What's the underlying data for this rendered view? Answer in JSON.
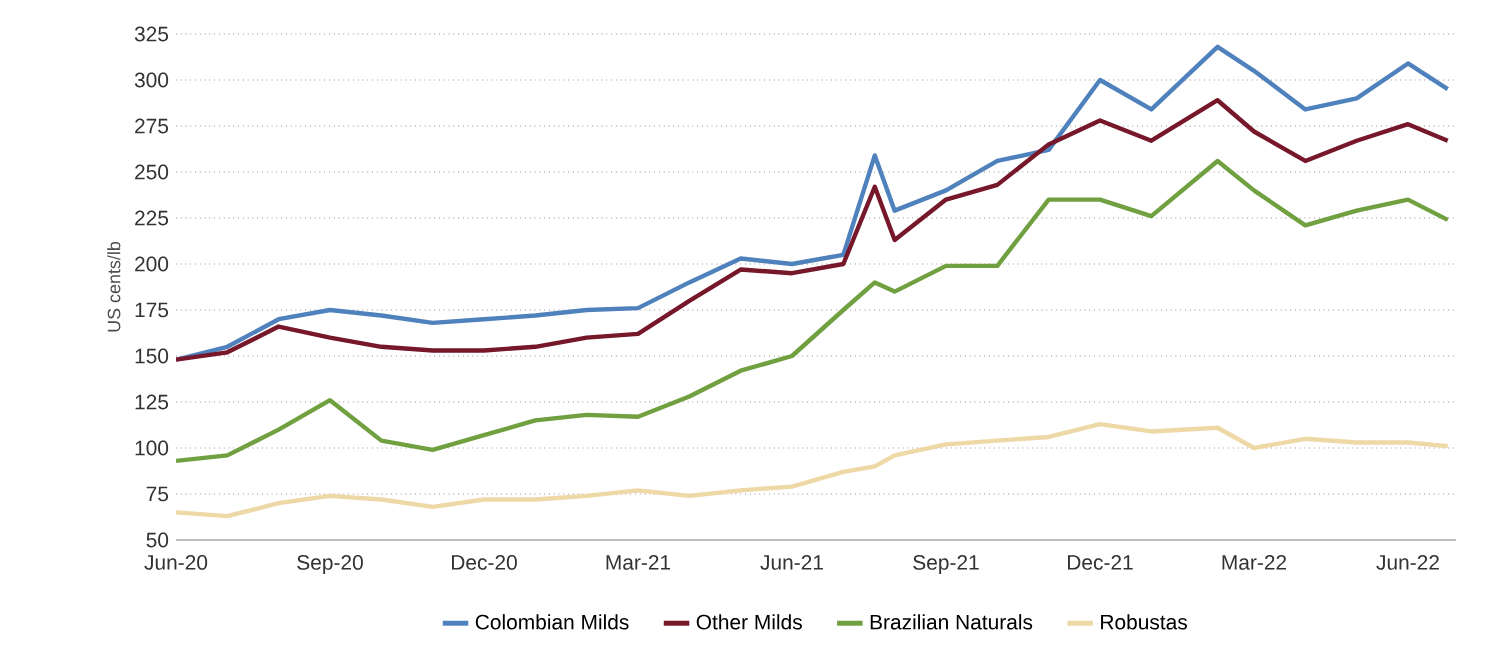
{
  "chart_data": {
    "type": "line",
    "ylabel": "US cents/lb",
    "x": [
      "2020-06-01",
      "2020-07-01",
      "2020-08-01",
      "2020-09-01",
      "2020-10-01",
      "2020-11-01",
      "2020-12-01",
      "2021-01-01",
      "2021-02-01",
      "2021-03-01",
      "2021-04-01",
      "2021-05-01",
      "2021-06-01",
      "2021-07-01",
      "2021-07-20",
      "2021-08-01",
      "2021-09-01",
      "2021-10-01",
      "2021-11-01",
      "2021-12-01",
      "2022-01-01",
      "2022-02-10",
      "2022-03-01",
      "2022-04-01",
      "2022-05-01",
      "2022-06-01",
      "2022-06-25"
    ],
    "series": [
      {
        "name": "Colombian Milds",
        "color": "#4f81bd",
        "values": [
          148,
          155,
          170,
          175,
          172,
          168,
          170,
          172,
          175,
          176,
          190,
          203,
          200,
          205,
          259,
          229,
          240,
          256,
          262,
          300,
          284,
          318,
          305,
          284,
          290,
          309,
          295
        ]
      },
      {
        "name": "Other Milds",
        "color": "#76182a",
        "values": [
          148,
          152,
          166,
          160,
          155,
          153,
          153,
          155,
          160,
          162,
          180,
          197,
          195,
          200,
          242,
          213,
          235,
          243,
          265,
          278,
          267,
          289,
          272,
          256,
          267,
          276,
          267
        ]
      },
      {
        "name": "Brazilian Naturals",
        "color": "#70a040",
        "values": [
          93,
          96,
          110,
          126,
          104,
          99,
          107,
          115,
          118,
          117,
          128,
          142,
          150,
          175,
          190,
          185,
          199,
          199,
          235,
          235,
          226,
          256,
          240,
          221,
          229,
          235,
          224
        ]
      },
      {
        "name": "Robustas",
        "color": "#edd8a6",
        "values": [
          65,
          63,
          70,
          74,
          72,
          68,
          72,
          72,
          74,
          77,
          74,
          77,
          79,
          87,
          90,
          96,
          102,
          104,
          106,
          113,
          109,
          111,
          100,
          105,
          103,
          103,
          101
        ]
      }
    ],
    "xlim": [
      "2020-06-01",
      "2022-06-30"
    ],
    "xticks": [
      {
        "value": "2020-06-01",
        "label": "Jun-20"
      },
      {
        "value": "2020-09-01",
        "label": "Sep-20"
      },
      {
        "value": "2020-12-01",
        "label": "Dec-20"
      },
      {
        "value": "2021-03-01",
        "label": "Mar-21"
      },
      {
        "value": "2021-06-01",
        "label": "Jun-21"
      },
      {
        "value": "2021-09-01",
        "label": "Sep-21"
      },
      {
        "value": "2021-12-01",
        "label": "Dec-21"
      },
      {
        "value": "2022-03-01",
        "label": "Mar-22"
      },
      {
        "value": "2022-06-01",
        "label": "Jun-22"
      }
    ],
    "ylim": [
      50,
      325
    ],
    "yticks": [
      50,
      75,
      100,
      125,
      150,
      175,
      200,
      225,
      250,
      275,
      300,
      325
    ],
    "grid": "y",
    "legend": "bottom"
  }
}
